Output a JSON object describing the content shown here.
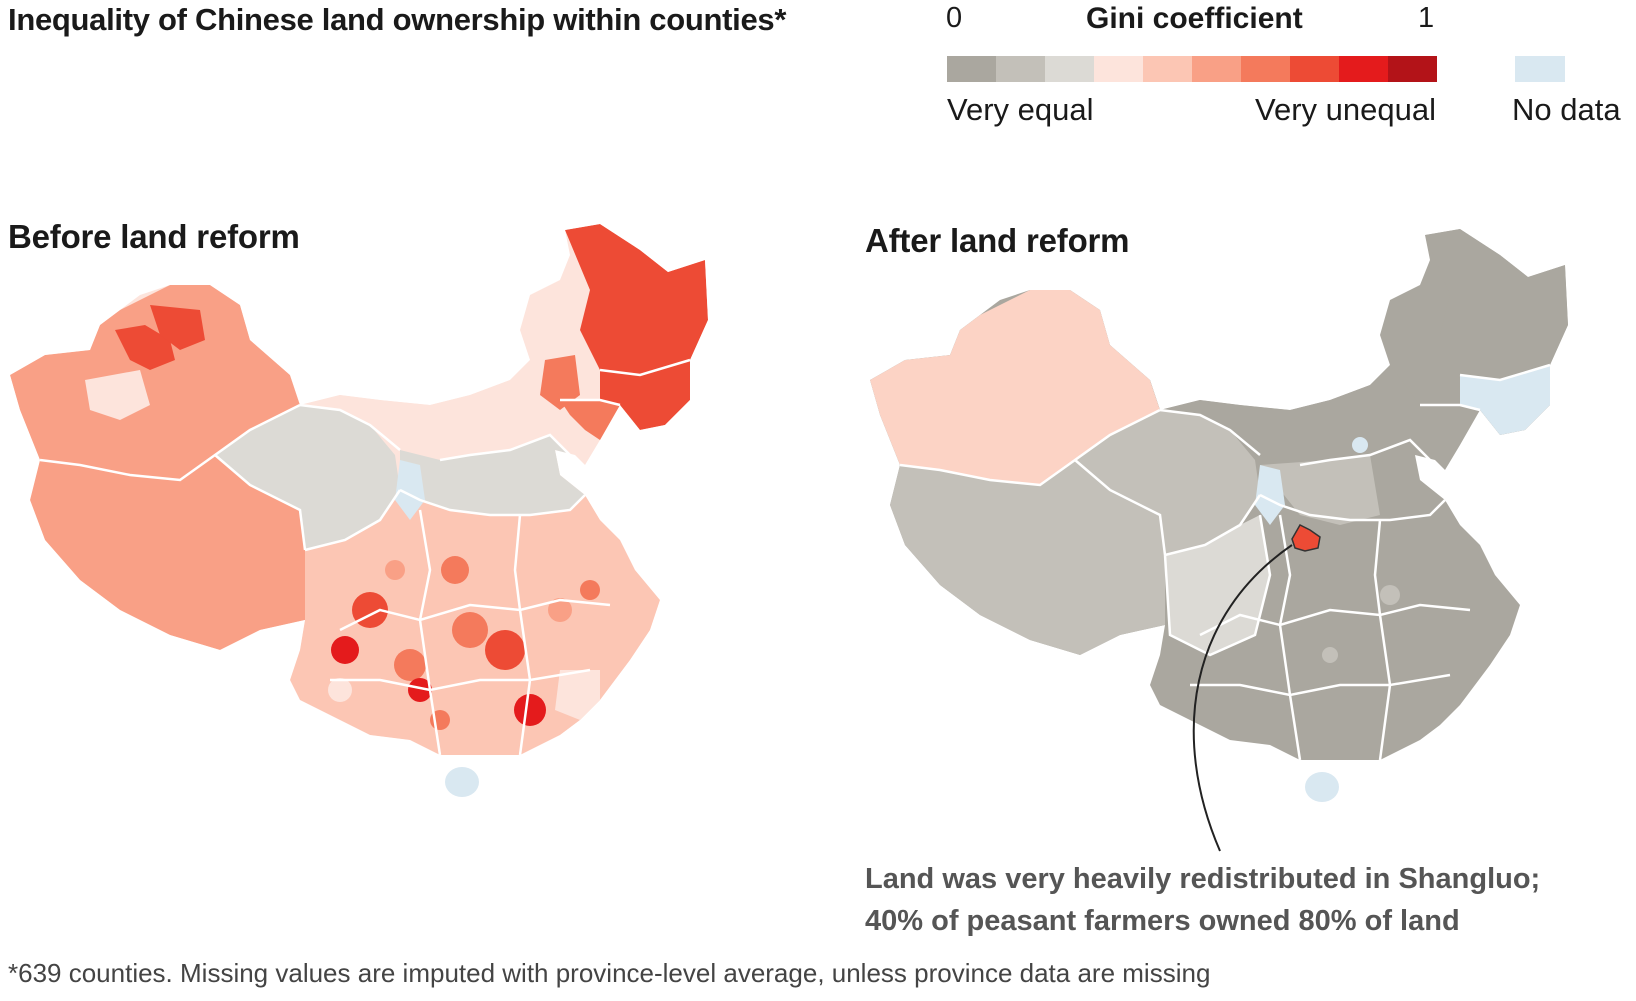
{
  "header": {
    "title": "Inequality of Chinese land ownership within counties*"
  },
  "legend": {
    "title": "Gini coefficient",
    "min_label": "0",
    "max_label": "1",
    "low_label": "Very equal",
    "high_label": "Very unequal",
    "nodata_label": "No data",
    "colors": [
      "#aaa79f",
      "#c3c0b9",
      "#dcdad5",
      "#fde4dc",
      "#fcc6b4",
      "#f9a086",
      "#f47a5c",
      "#ed4b35",
      "#e41b1c",
      "#b31318"
    ],
    "nodata_color": "#d9e8f1"
  },
  "panels": {
    "before_title": "Before land reform",
    "after_title": "After land reform"
  },
  "annotation": {
    "line1": "Land was very heavily redistributed in Shangluo;",
    "line2": "40% of peasant farmers owned 80% of land"
  },
  "footnote": "*639 counties. Missing values are imputed with province-level average, unless province data are missing"
}
